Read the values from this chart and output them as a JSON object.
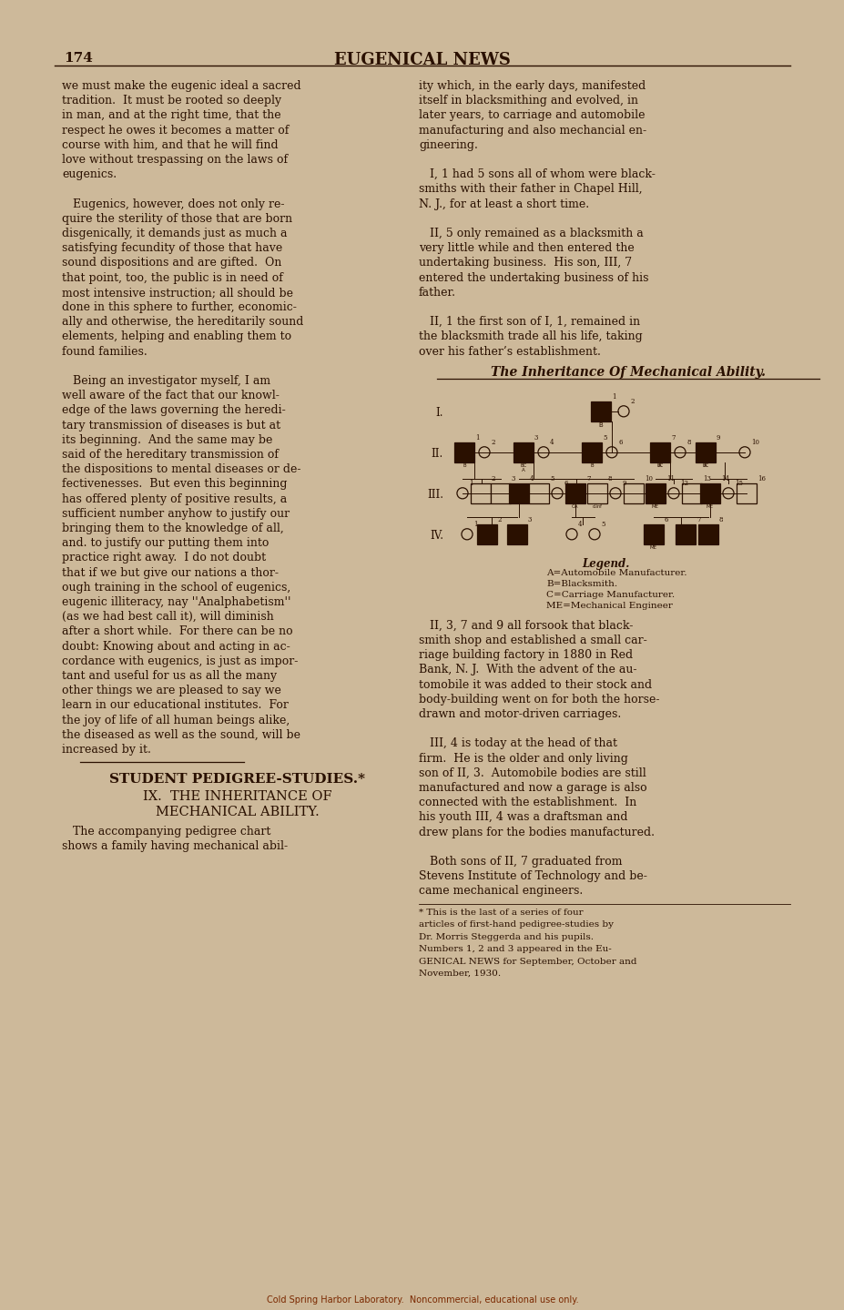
{
  "page_bg": "#cdb99a",
  "text_color": "#2a1000",
  "page_number": "174",
  "header": "EUGENICAL NEWS",
  "footer": "Cold Spring Harbor Laboratory.  Noncommercial, educational use only.",
  "title_section": "STUDENT PEDIGREE-STUDIES.*",
  "subtitle1": "IX.  THE INHERITANCE OF",
  "subtitle2": "MECHANICAL ABILITY.",
  "left_col_lines": [
    "we must make the eugenic ideal a sacred",
    "tradition.  It must be rooted so deeply",
    "in man, and at the right time, that the",
    "respect he owes it becomes a matter of",
    "course with him, and that he will find",
    "love without trespassing on the laws of",
    "eugenics.",
    "",
    "   Eugenics, however, does not only re-",
    "quire the sterility of those that are born",
    "disgenically, it demands just as much a",
    "satisfying fecundity of those that have",
    "sound dispositions and are gifted.  On",
    "that point, too, the public is in need of",
    "most intensive instruction; all should be",
    "done in this sphere to further, economic-",
    "ally and otherwise, the hereditarily sound",
    "elements, helping and enabling them to",
    "found families.",
    "",
    "   Being an investigator myself, I am",
    "well aware of the fact that our knowl-",
    "edge of the laws governing the heredi-",
    "tary transmission of diseases is but at",
    "its beginning.  And the same may be",
    "said of the hereditary transmission of",
    "the dispositions to mental diseases or de-",
    "fectivenesses.  But even this beginning",
    "has offered plenty of positive results, a",
    "sufficient number anyhow to justify our",
    "bringing them to the knowledge of all,",
    "and. to justify our putting them into",
    "practice right away.  I do not doubt",
    "that if we but give our nations a thor-",
    "ough training in the school of eugenics,",
    "eugenic illiteracy, nay ''Analphabetism''",
    "(as we had best call it), will diminish",
    "after a short while.  For there can be no",
    "doubt: Knowing about and acting in ac-",
    "cordance with eugenics, is just as impor-",
    "tant and useful for us as all the many",
    "other things we are pleased to say we",
    "learn in our educational institutes.  For",
    "the joy of life of all human beings alike,",
    "the diseased as well as the sound, will be",
    "increased by it."
  ],
  "right_col_top_lines": [
    "ity which, in the early days, manifested",
    "itself in blacksmithing and evolved, in",
    "later years, to carriage and automobile",
    "manufacturing and also mechancial en-",
    "gineering.",
    "",
    "   I, 1 had 5 sons all of whom were black-",
    "smiths with their father in Chapel Hill,",
    "N. J., for at least a short time.",
    "",
    "   II, 5 only remained as a blacksmith a",
    "very little while and then entered the",
    "undertaking business.  His son, III, 7",
    "entered the undertaking business of his",
    "father.",
    "",
    "   II, 1 the first son of I, 1, remained in",
    "the blacksmith trade all his life, taking",
    "over his father’s establishment."
  ],
  "right_col_bottom_lines": [
    "   II, 3, 7 and 9 all forsook that black-",
    "smith shop and established a small car-",
    "riage building factory in 1880 in Red",
    "Bank, N. J.  With the advent of the au-",
    "tomobile it was added to their stock and",
    "body-building went on for both the horse-",
    "drawn and motor-driven carriages.",
    "",
    "   III, 4 is today at the head of that",
    "firm.  He is the older and only living",
    "son of II, 3.  Automobile bodies are still",
    "manufactured and now a garage is also",
    "connected with the establishment.  In",
    "his youth III, 4 was a draftsman and",
    "drew plans for the bodies manufactured.",
    "",
    "   Both sons of II, 7 graduated from",
    "Stevens Institute of Technology and be-",
    "came mechanical engineers."
  ],
  "footnote_lines": [
    "* This is the last of a series of four",
    "articles of first-hand pedigree-studies by",
    "Dr. Morris Steggerda and his pupils.",
    "Numbers 1, 2 and 3 appeared in the Eu-",
    "GENICAL NEWS for September, October and",
    "November, 1930."
  ],
  "legend_title": "Legend.",
  "legend_items": [
    "A=Automobile Manufacturer.",
    "B=Blacksmith.",
    "C=Carriage Manufacturer.",
    "ME=Mechanical Engineer"
  ],
  "pedigree_title": "The Inheritance Of Mechanical Ability."
}
